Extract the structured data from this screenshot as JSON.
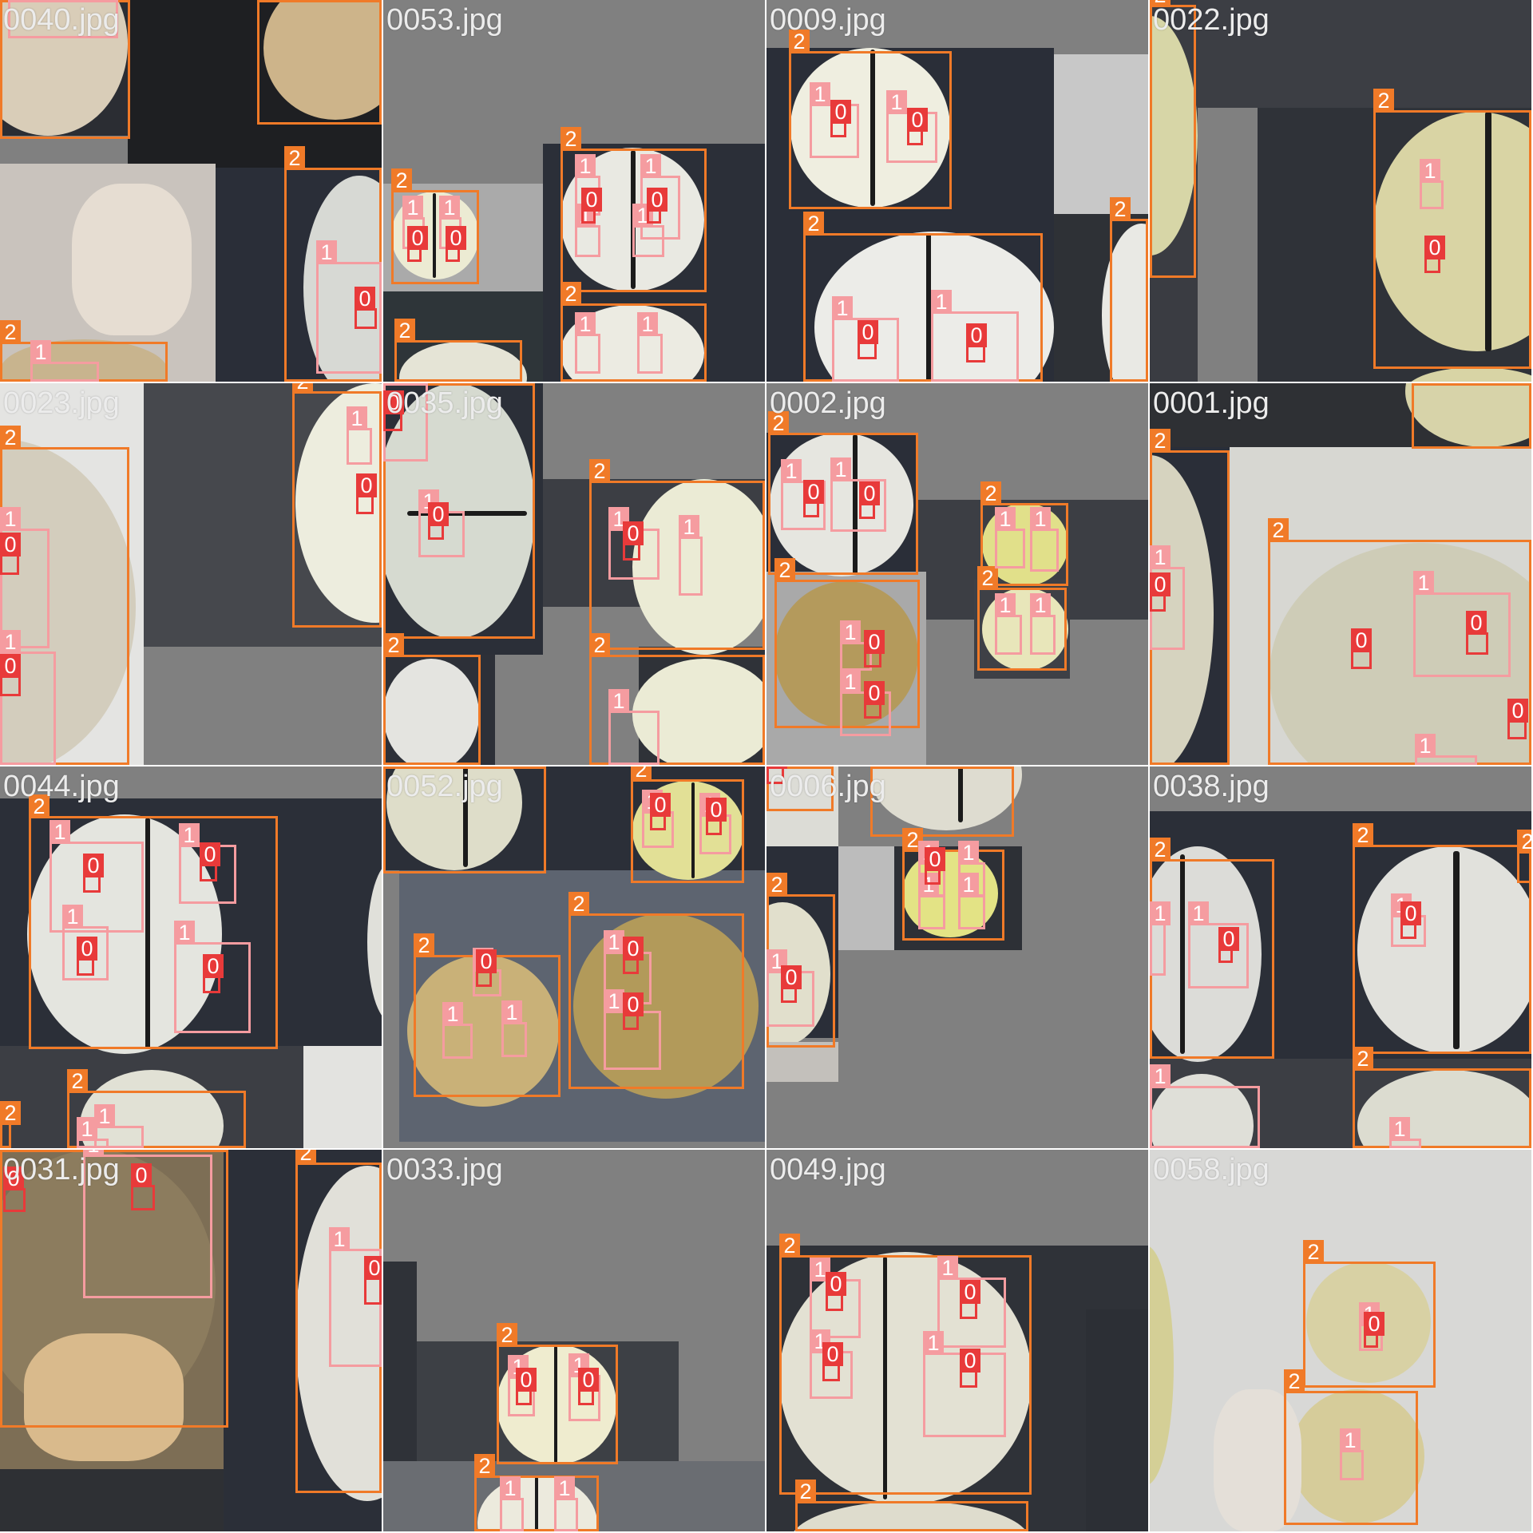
{
  "mosaic": {
    "tiles": [
      {
        "name": "0040.jpg",
        "labels": [
          "2",
          "2",
          "2",
          "2",
          "1",
          "1",
          "1",
          "0"
        ]
      },
      {
        "name": "0053.jpg",
        "labels": [
          "2",
          "2",
          "2",
          "2",
          "1",
          "1",
          "1",
          "1",
          "1",
          "1",
          "1",
          "1",
          "0",
          "0",
          "0",
          "0"
        ]
      },
      {
        "name": "0009.jpg",
        "labels": [
          "2",
          "2",
          "2",
          "1",
          "1",
          "1",
          "1",
          "0",
          "0",
          "0",
          "0"
        ]
      },
      {
        "name": "0022.jpg",
        "labels": [
          "2",
          "2",
          "1",
          "0"
        ]
      },
      {
        "name": "0023.jpg",
        "labels": [
          "2",
          "2",
          "1",
          "1",
          "1",
          "0",
          "0",
          "0"
        ]
      },
      {
        "name": "0035.jpg",
        "labels": [
          "2",
          "2",
          "2",
          "2",
          "1",
          "1",
          "1",
          "1",
          "1",
          "0",
          "0",
          "0"
        ]
      },
      {
        "name": "0002.jpg",
        "labels": [
          "2",
          "2",
          "2",
          "2",
          "1",
          "1",
          "1",
          "1",
          "1",
          "1",
          "1",
          "1",
          "0",
          "0",
          "0",
          "0"
        ]
      },
      {
        "name": "0001.jpg",
        "labels": [
          "2",
          "2",
          "2",
          "1",
          "1",
          "1",
          "0",
          "0",
          "0",
          "0"
        ]
      },
      {
        "name": "0044.jpg",
        "labels": [
          "2",
          "2",
          "2",
          "1",
          "1",
          "1",
          "1",
          "1",
          "1",
          "0",
          "0",
          "0",
          "0"
        ]
      },
      {
        "name": "0052.jpg",
        "labels": [
          "2",
          "2",
          "2",
          "2",
          "1",
          "1",
          "1",
          "1",
          "1",
          "1",
          "1",
          "0",
          "0",
          "0",
          "0",
          "0"
        ]
      },
      {
        "name": "0006.jpg",
        "labels": [
          "2",
          "2",
          "2",
          "2",
          "1",
          "1",
          "1",
          "1",
          "1",
          "0",
          "0",
          "0"
        ]
      },
      {
        "name": "0038.jpg",
        "labels": [
          "2",
          "2",
          "2",
          "2",
          "1",
          "1",
          "1",
          "1",
          "1",
          "0",
          "0"
        ]
      },
      {
        "name": "0031.jpg",
        "labels": [
          "2",
          "2",
          "1",
          "1",
          "0",
          "0",
          "0"
        ]
      },
      {
        "name": "0033.jpg",
        "labels": [
          "2",
          "2",
          "1",
          "1",
          "1",
          "1",
          "0",
          "0"
        ]
      },
      {
        "name": "0049.jpg",
        "labels": [
          "2",
          "2",
          "1",
          "1",
          "1",
          "1",
          "0",
          "0",
          "0",
          "0"
        ]
      },
      {
        "name": "0058.jpg",
        "labels": [
          "2",
          "2",
          "1",
          "1",
          "0"
        ]
      }
    ]
  },
  "colors": {
    "class_2": "#f07a28",
    "class_1": "#f59ca0",
    "class_0": "#e83a3a",
    "tile_bg": "#808080",
    "dark_bg": "#2c2f36"
  }
}
